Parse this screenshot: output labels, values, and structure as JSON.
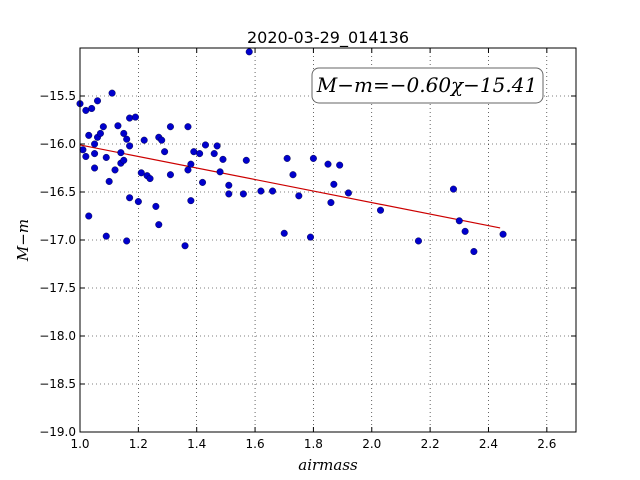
{
  "chart_data": {
    "type": "scatter",
    "title": "2020-03-29_014136",
    "xlabel": "airmass",
    "ylabel": "M−m",
    "xlim": [
      1.0,
      2.7
    ],
    "ylim": [
      -19.0,
      -15.0
    ],
    "ylim_note": "y axis inverted: -15.0 at top, -19.0 at bottom",
    "xticks": [
      "1.0",
      "1.2",
      "1.4",
      "1.6",
      "1.8",
      "2.0",
      "2.2",
      "2.4",
      "2.6"
    ],
    "yticks": [
      "−15.5",
      "−16.0",
      "−16.5",
      "−17.0",
      "−17.5",
      "−18.0",
      "−18.5",
      "−19.0"
    ],
    "grid": true,
    "point_color": "#0000cc",
    "fit_color": "#cc0000",
    "fit_label": "M−m=−0.60χ−15.41",
    "fit": {
      "slope": -0.6,
      "intercept": -15.41,
      "x_range": [
        1.0,
        2.44
      ]
    },
    "points": [
      [
        1.0,
        -15.58
      ],
      [
        1.01,
        -16.06
      ],
      [
        1.02,
        -16.13
      ],
      [
        1.02,
        -15.65
      ],
      [
        1.03,
        -15.91
      ],
      [
        1.03,
        -16.75
      ],
      [
        1.04,
        -15.63
      ],
      [
        1.05,
        -16.0
      ],
      [
        1.05,
        -16.1
      ],
      [
        1.05,
        -16.25
      ],
      [
        1.06,
        -15.93
      ],
      [
        1.06,
        -15.55
      ],
      [
        1.07,
        -15.89
      ],
      [
        1.08,
        -15.82
      ],
      [
        1.09,
        -16.14
      ],
      [
        1.09,
        -16.96
      ],
      [
        1.1,
        -16.39
      ],
      [
        1.11,
        -15.47
      ],
      [
        1.12,
        -16.27
      ],
      [
        1.13,
        -15.81
      ],
      [
        1.14,
        -16.2
      ],
      [
        1.14,
        -16.09
      ],
      [
        1.15,
        -15.89
      ],
      [
        1.15,
        -16.17
      ],
      [
        1.16,
        -15.95
      ],
      [
        1.16,
        -17.01
      ],
      [
        1.17,
        -15.73
      ],
      [
        1.17,
        -16.02
      ],
      [
        1.17,
        -16.56
      ],
      [
        1.19,
        -15.72
      ],
      [
        1.2,
        -16.6
      ],
      [
        1.21,
        -16.3
      ],
      [
        1.22,
        -15.96
      ],
      [
        1.23,
        -16.33
      ],
      [
        1.24,
        -16.36
      ],
      [
        1.26,
        -16.65
      ],
      [
        1.27,
        -15.93
      ],
      [
        1.27,
        -16.84
      ],
      [
        1.28,
        -15.96
      ],
      [
        1.29,
        -16.08
      ],
      [
        1.31,
        -15.82
      ],
      [
        1.31,
        -16.32
      ],
      [
        1.36,
        -17.06
      ],
      [
        1.37,
        -16.27
      ],
      [
        1.37,
        -15.82
      ],
      [
        1.38,
        -16.59
      ],
      [
        1.38,
        -16.21
      ],
      [
        1.39,
        -16.08
      ],
      [
        1.41,
        -16.1
      ],
      [
        1.42,
        -16.4
      ],
      [
        1.43,
        -16.01
      ],
      [
        1.46,
        -16.1
      ],
      [
        1.47,
        -16.02
      ],
      [
        1.48,
        -16.29
      ],
      [
        1.49,
        -16.16
      ],
      [
        1.51,
        -16.52
      ],
      [
        1.51,
        -16.43
      ],
      [
        1.56,
        -16.52
      ],
      [
        1.57,
        -16.17
      ],
      [
        1.58,
        -15.04
      ],
      [
        1.62,
        -16.49
      ],
      [
        1.66,
        -16.49
      ],
      [
        1.7,
        -16.93
      ],
      [
        1.71,
        -16.15
      ],
      [
        1.73,
        -16.32
      ],
      [
        1.75,
        -16.54
      ],
      [
        1.79,
        -16.97
      ],
      [
        1.8,
        -16.15
      ],
      [
        1.85,
        -16.21
      ],
      [
        1.86,
        -16.61
      ],
      [
        1.87,
        -16.42
      ],
      [
        1.89,
        -16.22
      ],
      [
        1.92,
        -16.51
      ],
      [
        2.03,
        -16.69
      ],
      [
        2.16,
        -17.01
      ],
      [
        2.28,
        -16.47
      ],
      [
        2.3,
        -16.8
      ],
      [
        2.32,
        -16.91
      ],
      [
        2.35,
        -17.12
      ],
      [
        2.45,
        -16.94
      ]
    ]
  }
}
